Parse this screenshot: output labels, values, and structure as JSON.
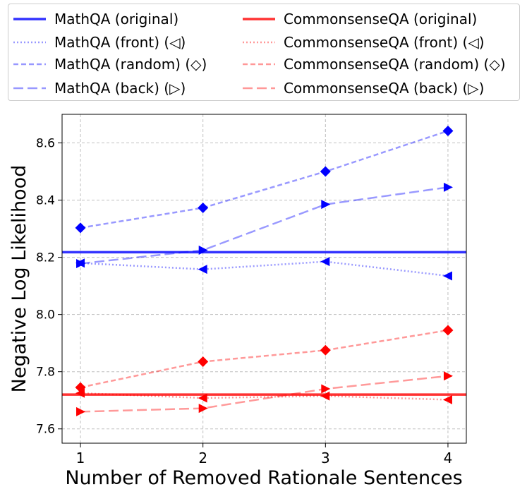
{
  "chart_data": {
    "type": "line",
    "title": "",
    "xlabel": "Number of Removed Rationale Sentences",
    "ylabel": "Negative Log Likelihood",
    "x": [
      1,
      2,
      3,
      4
    ],
    "x_ticks": [
      "1",
      "2",
      "3",
      "4"
    ],
    "xlim": [
      0.85,
      4.15
    ],
    "ylim": [
      7.55,
      8.7
    ],
    "y_ticks": [
      "7.6",
      "7.8",
      "8.0",
      "8.2",
      "8.4",
      "8.6"
    ],
    "grid": true,
    "legend_position": "top",
    "colors": {
      "mathqa": "#0000ff",
      "commonsenseqa": "#ff0000"
    },
    "baselines": [
      {
        "name": "MathQA (original)",
        "value": 8.218,
        "color": "#0000ff"
      },
      {
        "name": "CommonsenseQA (original)",
        "value": 7.72,
        "color": "#ff0000"
      }
    ],
    "series": [
      {
        "name": "MathQA (front) (◁)",
        "group": "mathqa",
        "style": "dotted",
        "marker": "triangle-left",
        "values": [
          8.18,
          8.158,
          8.185,
          8.135
        ]
      },
      {
        "name": "MathQA (random) (◇)",
        "group": "mathqa",
        "style": "dashed",
        "marker": "diamond",
        "values": [
          8.303,
          8.373,
          8.5,
          8.642
        ]
      },
      {
        "name": "MathQA (back) (▷)",
        "group": "mathqa",
        "style": "longdash",
        "marker": "triangle-right",
        "values": [
          8.178,
          8.225,
          8.385,
          8.445
        ]
      },
      {
        "name": "CommonsenseQA (front) (◁)",
        "group": "commonsenseqa",
        "style": "dotted",
        "marker": "triangle-left",
        "values": [
          7.725,
          7.708,
          7.715,
          7.702
        ]
      },
      {
        "name": "CommonsenseQA (random) (◇)",
        "group": "commonsenseqa",
        "style": "dashed",
        "marker": "diamond",
        "values": [
          7.745,
          7.835,
          7.875,
          7.945
        ]
      },
      {
        "name": "CommonsenseQA (back) (▷)",
        "group": "commonsenseqa",
        "style": "longdash",
        "marker": "triangle-right",
        "values": [
          7.66,
          7.672,
          7.74,
          7.785
        ]
      }
    ]
  },
  "legend": {
    "items": [
      {
        "label": "MathQA (original)",
        "color": "#0000ff",
        "style": "solid"
      },
      {
        "label": "CommonsenseQA (original)",
        "color": "#ff0000",
        "style": "solid"
      },
      {
        "label": "MathQA (front) (◁)",
        "color": "#0000ff",
        "style": "dotted"
      },
      {
        "label": "CommonsenseQA (front) (◁)",
        "color": "#ff0000",
        "style": "dotted"
      },
      {
        "label": "MathQA (random) (◇)",
        "color": "#0000ff",
        "style": "dashed"
      },
      {
        "label": "CommonsenseQA (random) (◇)",
        "color": "#ff0000",
        "style": "dashed"
      },
      {
        "label": "MathQA (back) (▷)",
        "color": "#0000ff",
        "style": "longdash"
      },
      {
        "label": "CommonsenseQA (back) (▷)",
        "color": "#ff0000",
        "style": "longdash"
      }
    ]
  }
}
